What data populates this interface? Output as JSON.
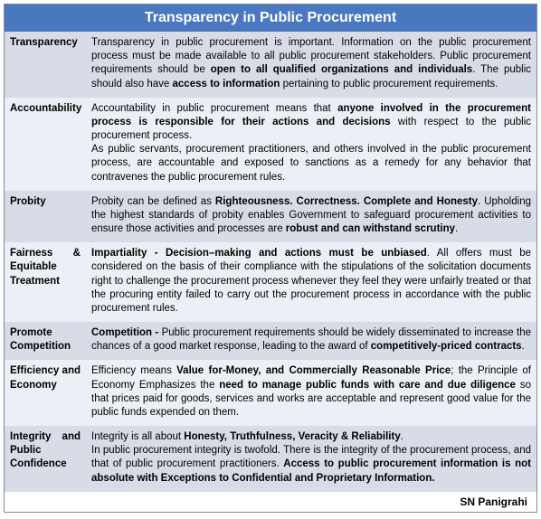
{
  "header": {
    "title": "Transparency in Public Procurement",
    "bg_color": "#4a78c0",
    "text_color": "#ffffff",
    "font_size": 16
  },
  "row_colors": {
    "odd": "#d7dce7",
    "even": "#eceff5"
  },
  "label_font_size": 11.5,
  "desc_font_size": 11.5,
  "line_height": 1.32,
  "footer": {
    "text": "SN Panigrahi",
    "bg_color": "#ffffff",
    "font_size": 12
  },
  "rows": [
    {
      "label_parts": [
        {
          "t": "Transparency",
          "b": true
        }
      ],
      "desc_parts": [
        {
          "t": "Transparency in public procurement is important. Information on the public procurement process must be made available to all public procurement stakeholders. Public procurement requirements should be "
        },
        {
          "t": "open to all qualified organizations and individuals",
          "b": true
        },
        {
          "t": ". The public should also have "
        },
        {
          "t": "access to information",
          "b": true
        },
        {
          "t": " pertaining to public procurement requirements."
        }
      ]
    },
    {
      "label_parts": [
        {
          "t": "Accountability",
          "b": true
        }
      ],
      "desc_parts": [
        {
          "t": "Accountability in public procurement means that "
        },
        {
          "t": "anyone involved in the procurement process is responsible for their actions and decisions",
          "b": true
        },
        {
          "t": " with respect to the public procurement process."
        },
        {
          "t": "\nAs public servants, procurement practitioners, and others involved in the public procurement process, are accountable and exposed to sanctions as a remedy for any behavior that contravenes the public procurement rules."
        }
      ]
    },
    {
      "label_parts": [
        {
          "t": "Probity",
          "b": true
        }
      ],
      "desc_parts": [
        {
          "t": "Probity can be defined as "
        },
        {
          "t": "Righteousness. Correctness. Complete and Honesty",
          "b": true
        },
        {
          "t": ". Upholding the highest standards of probity enables Government to safeguard procurement activities to ensure those activities and processes are "
        },
        {
          "t": "robust and can withstand scrutiny",
          "b": true
        },
        {
          "t": "."
        }
      ]
    },
    {
      "label_parts": [
        {
          "t": "Fairness & Equitable Treatment",
          "b": true
        }
      ],
      "desc_parts": [
        {
          "t": "Impartiality - Decision–making and actions must be unbiased",
          "b": true
        },
        {
          "t": ".  All offers must be considered on the basis of their compliance with the stipulations of the solicitation documents right to challenge the procurement process whenever they feel they were unfairly treated or that the procuring entity failed to carry out the procurement process in accordance with the public procurement rules."
        }
      ]
    },
    {
      "label_parts": [
        {
          "t": "Promote Competition",
          "b": true
        }
      ],
      "desc_parts": [
        {
          "t": "Competition - ",
          "b": true
        },
        {
          "t": "Public procurement requirements should be widely disseminated to increase the chances of a good market response, leading to the award of "
        },
        {
          "t": "competitively-priced contracts",
          "b": true
        },
        {
          "t": "."
        }
      ]
    },
    {
      "label_parts": [
        {
          "t": "Efficiency ",
          "b": true
        },
        {
          "t": "and ",
          "b": false
        },
        {
          "t": "Economy",
          "b": true
        }
      ],
      "desc_parts": [
        {
          "t": "Efficiency means "
        },
        {
          "t": "Value for-Money, and Commercially Reasonable Price",
          "b": true
        },
        {
          "t": "; the Principle of Economy Emphasizes the "
        },
        {
          "t": "need to manage public funds with care and due diligence",
          "b": true
        },
        {
          "t": " so that prices paid for goods, services and works are acceptable and represent good value for the public funds expended on them."
        }
      ]
    },
    {
      "label_parts": [
        {
          "t": "Integrity ",
          "b": true
        },
        {
          "t": "and ",
          "b": false
        },
        {
          "t": "Public Confidence",
          "b": true
        }
      ],
      "desc_parts": [
        {
          "t": "Integrity is all about "
        },
        {
          "t": "Honesty, Truthfulness, Veracity & Reliability",
          "b": true
        },
        {
          "t": "."
        },
        {
          "t": "\nIn public procurement integrity is twofold. There is the integrity of the procurement process, and that of public procurement practitioners. "
        },
        {
          "t": "Access to public procurement information is not absolute with Exceptions to Confidential and Proprietary Information.",
          "b": true
        }
      ]
    }
  ]
}
